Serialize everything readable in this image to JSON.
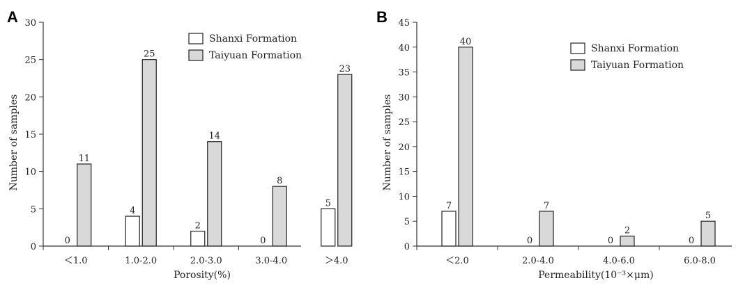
{
  "chart_data": [
    {
      "panel": "A",
      "type": "bar",
      "categories": [
        "＜1.0",
        "1.0-2.0",
        "2.0-3.0",
        "3.0-4.0",
        "＞4.0"
      ],
      "series": [
        {
          "name": "Shanxi Formation",
          "values": [
            0,
            4,
            2,
            0,
            5
          ],
          "color": "#ffffff"
        },
        {
          "name": "Taiyuan Formation",
          "values": [
            11,
            25,
            14,
            8,
            23
          ],
          "color": "#d9d9d9"
        }
      ],
      "xlabel": "Porosity(%)",
      "ylabel": "Number of samples",
      "ylim": [
        0,
        30
      ],
      "yticks": [
        0,
        5,
        10,
        15,
        20,
        25,
        30
      ],
      "legend_position": "top-right",
      "grid": false
    },
    {
      "panel": "B",
      "type": "bar",
      "categories": [
        "＜2.0",
        "2.0-4.0",
        "4.0-6.0",
        "6.0-8.0"
      ],
      "series": [
        {
          "name": "Shanxi Formation",
          "values": [
            7,
            0,
            0,
            0
          ],
          "color": "#ffffff"
        },
        {
          "name": "Taiyuan Formation",
          "values": [
            40,
            7,
            2,
            5
          ],
          "color": "#d9d9d9"
        }
      ],
      "xlabel": "Permeability(10⁻³×μm)",
      "ylabel": "Number of samples",
      "ylim": [
        0,
        45
      ],
      "yticks": [
        0,
        5,
        10,
        15,
        20,
        25,
        30,
        35,
        40,
        45
      ],
      "legend_position": "top-right",
      "grid": false
    }
  ]
}
